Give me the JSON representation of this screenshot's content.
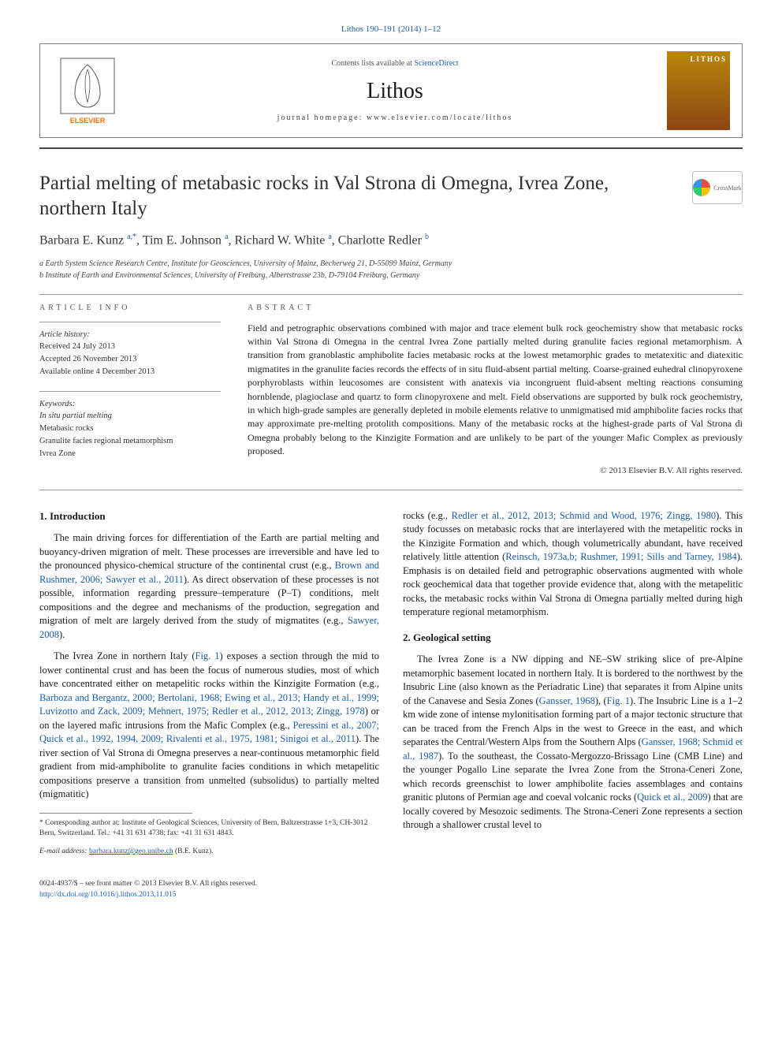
{
  "journal_ref": "Lithos 190–191 (2014) 1–12",
  "header": {
    "contents_pre": "Contents lists available at ",
    "contents_link": "ScienceDirect",
    "journal_name": "Lithos",
    "homepage_label": "journal homepage: ",
    "homepage_url": "www.elsevier.com/locate/lithos",
    "cover_text": "LITHOS"
  },
  "title": "Partial melting of metabasic rocks in Val Strona di Omegna, Ivrea Zone, northern Italy",
  "crossmark": "CrossMark",
  "authors_html": "Barbara E. Kunz <sup>a,*</sup>, Tim E. Johnson <sup>a</sup>, Richard W. White <sup>a</sup>, Charlotte Redler <sup>b</sup>",
  "affiliations": [
    "a Earth System Science Research Centre, Institute for Geosciences, University of Mainz, Becherweg 21, D-55099 Mainz, Germany",
    "b Institute of Earth and Environmental Sciences, University of Freiburg, Albertstrasse 23b, D-79104 Freiburg, Germany"
  ],
  "info": {
    "heading": "ARTICLE INFO",
    "history_label": "Article history:",
    "history": [
      "Received 24 July 2013",
      "Accepted 26 November 2013",
      "Available online 4 December 2013"
    ],
    "keywords_label": "Keywords:",
    "keywords": [
      "In situ partial melting",
      "Metabasic rocks",
      "Granulite facies regional metamorphism",
      "Ivrea Zone"
    ]
  },
  "abstract": {
    "heading": "ABSTRACT",
    "text": "Field and petrographic observations combined with major and trace element bulk rock geochemistry show that metabasic rocks within Val Strona di Omegna in the central Ivrea Zone partially melted during granulite facies regional metamorphism. A transition from granoblastic amphibolite facies metabasic rocks at the lowest metamorphic grades to metatexitic and diatexitic migmatites in the granulite facies records the effects of in situ fluid-absent partial melting. Coarse-grained euhedral clinopyroxene porphyroblasts within leucosomes are consistent with anatexis via incongruent fluid-absent melting reactions consuming hornblende, plagioclase and quartz to form clinopyroxene and melt. Field observations are supported by bulk rock geochemistry, in which high-grade samples are generally depleted in mobile elements relative to unmigmatised mid amphibolite facies rocks that may approximate pre-melting protolith compositions. Many of the metabasic rocks at the highest-grade parts of Val Strona di Omegna probably belong to the Kinzigite Formation and are unlikely to be part of the younger Mafic Complex as previously proposed.",
    "copyright": "© 2013 Elsevier B.V. All rights reserved."
  },
  "body": {
    "intro_heading": "1. Introduction",
    "intro_p1_a": "The main driving forces for differentiation of the Earth are partial melting and buoyancy-driven migration of melt. These processes are irreversible and have led to the pronounced physico-chemical structure of the continental crust (e.g., ",
    "intro_p1_ref1": "Brown and Rushmer, 2006; Sawyer et al., 2011",
    "intro_p1_b": "). As direct observation of these processes is not possible, information regarding pressure–temperature (P–T) conditions, melt compositions and the degree and mechanisms of the production, segregation and migration of melt are largely derived from the study of migmatites (e.g., ",
    "intro_p1_ref2": "Sawyer, 2008",
    "intro_p1_c": ").",
    "intro_p2_a": "The Ivrea Zone in northern Italy (",
    "intro_p2_fig1": "Fig. 1",
    "intro_p2_b": ") exposes a section through the mid to lower continental crust and has been the focus of numerous studies, most of which have concentrated either on metapelitic rocks within the Kinzigite Formation (e.g., ",
    "intro_p2_ref1": "Barboza and Bergantz, 2000; Bertolani, 1968; Ewing et al., 2013; Handy et al., 1999; Luvizotto and Zack, 2009; Mehnert, 1975; Redler et al., 2012, 2013; Zingg, 1978",
    "intro_p2_c": ") or on the layered mafic intrusions from the Mafic Complex (e.g., ",
    "intro_p2_ref2": "Peressini et al., 2007; Quick et al., 1992, 1994, 2009; Rivalenti et al., 1975, 1981; Sinigoi et al., 2011",
    "intro_p2_d": "). The river section of Val Strona di Omegna preserves a near-continuous metamorphic field gradient from mid-amphibolite to granulite facies conditions in which metapelitic compositions preserve a transition from unmelted (subsolidus) to partially melted (migmatitic) ",
    "col2_p1_a": "rocks (e.g., ",
    "col2_p1_ref1": "Redler et al., 2012, 2013; Schmid and Wood, 1976; Zingg, 1980",
    "col2_p1_b": "). This study focusses on metabasic rocks that are interlayered with the metapelitic rocks in the Kinzigite Formation and which, though volumetrically abundant, have received relatively little attention (",
    "col2_p1_ref2": "Reinsch, 1973a,b; Rushmer, 1991; Sills and Tarney, 1984",
    "col2_p1_c": "). Emphasis is on detailed field and petrographic observations augmented with whole rock geochemical data that together provide evidence that, along with the metapelitic rocks, the metabasic rocks within Val Strona di Omegna partially melted during high temperature regional metamorphism.",
    "geo_heading": "2. Geological setting",
    "geo_p1_a": "The Ivrea Zone is a NW dipping and NE–SW striking slice of pre-Alpine metamorphic basement located in northern Italy. It is bordered to the northwest by the Insubric Line (also known as the Periadratic Line) that separates it from Alpine units of the Canavese and Sesia Zones (",
    "geo_p1_ref1": "Gansser, 1968",
    "geo_p1_b": "), (",
    "geo_p1_fig1": "Fig. 1",
    "geo_p1_c": "). The Insubric Line is a 1–2 km wide zone of intense mylonitisation forming part of a major tectonic structure that can be traced from the French Alps in the west to Greece in the east, and which separates the Central/Western Alps from the Southern Alps (",
    "geo_p1_ref2": "Gansser, 1968; Schmid et al., 1987",
    "geo_p1_d": "). To the southeast, the Cossato-Mergozzo-Brissago Line (CMB Line) and the younger Pogallo Line separate the Ivrea Zone from the Strona-Ceneri Zone, which records greenschist to lower amphibolite facies assemblages and contains granitic plutons of Permian age and coeval volcanic rocks (",
    "geo_p1_ref3": "Quick et al., 2009",
    "geo_p1_e": ") that are locally covered by Mesozoic sediments. The Strona-Ceneri Zone represents a section through a shallower crustal level to"
  },
  "footnote": {
    "corr": "* Corresponding author at: Institute of Geological Sciences, University of Bern, Baltzerstrasse 1+3, CH-3012 Bern, Switzerland. Tel.: +41 31 631 4738; fax: +41 31 631 4843.",
    "email_label": "E-mail address: ",
    "email": "barbara.kunz@geo.unibe.ch",
    "email_who": " (B.E. Kunz)."
  },
  "footer": {
    "issn": "0024-4937/$ – see front matter © 2013 Elsevier B.V. All rights reserved.",
    "doi": "http://dx.doi.org/10.1016/j.lithos.2013.11.015"
  },
  "colors": {
    "link": "#1a5da8",
    "text": "#1a1a1a",
    "rule": "#999999",
    "elsevier_orange": "#ff6b00"
  }
}
